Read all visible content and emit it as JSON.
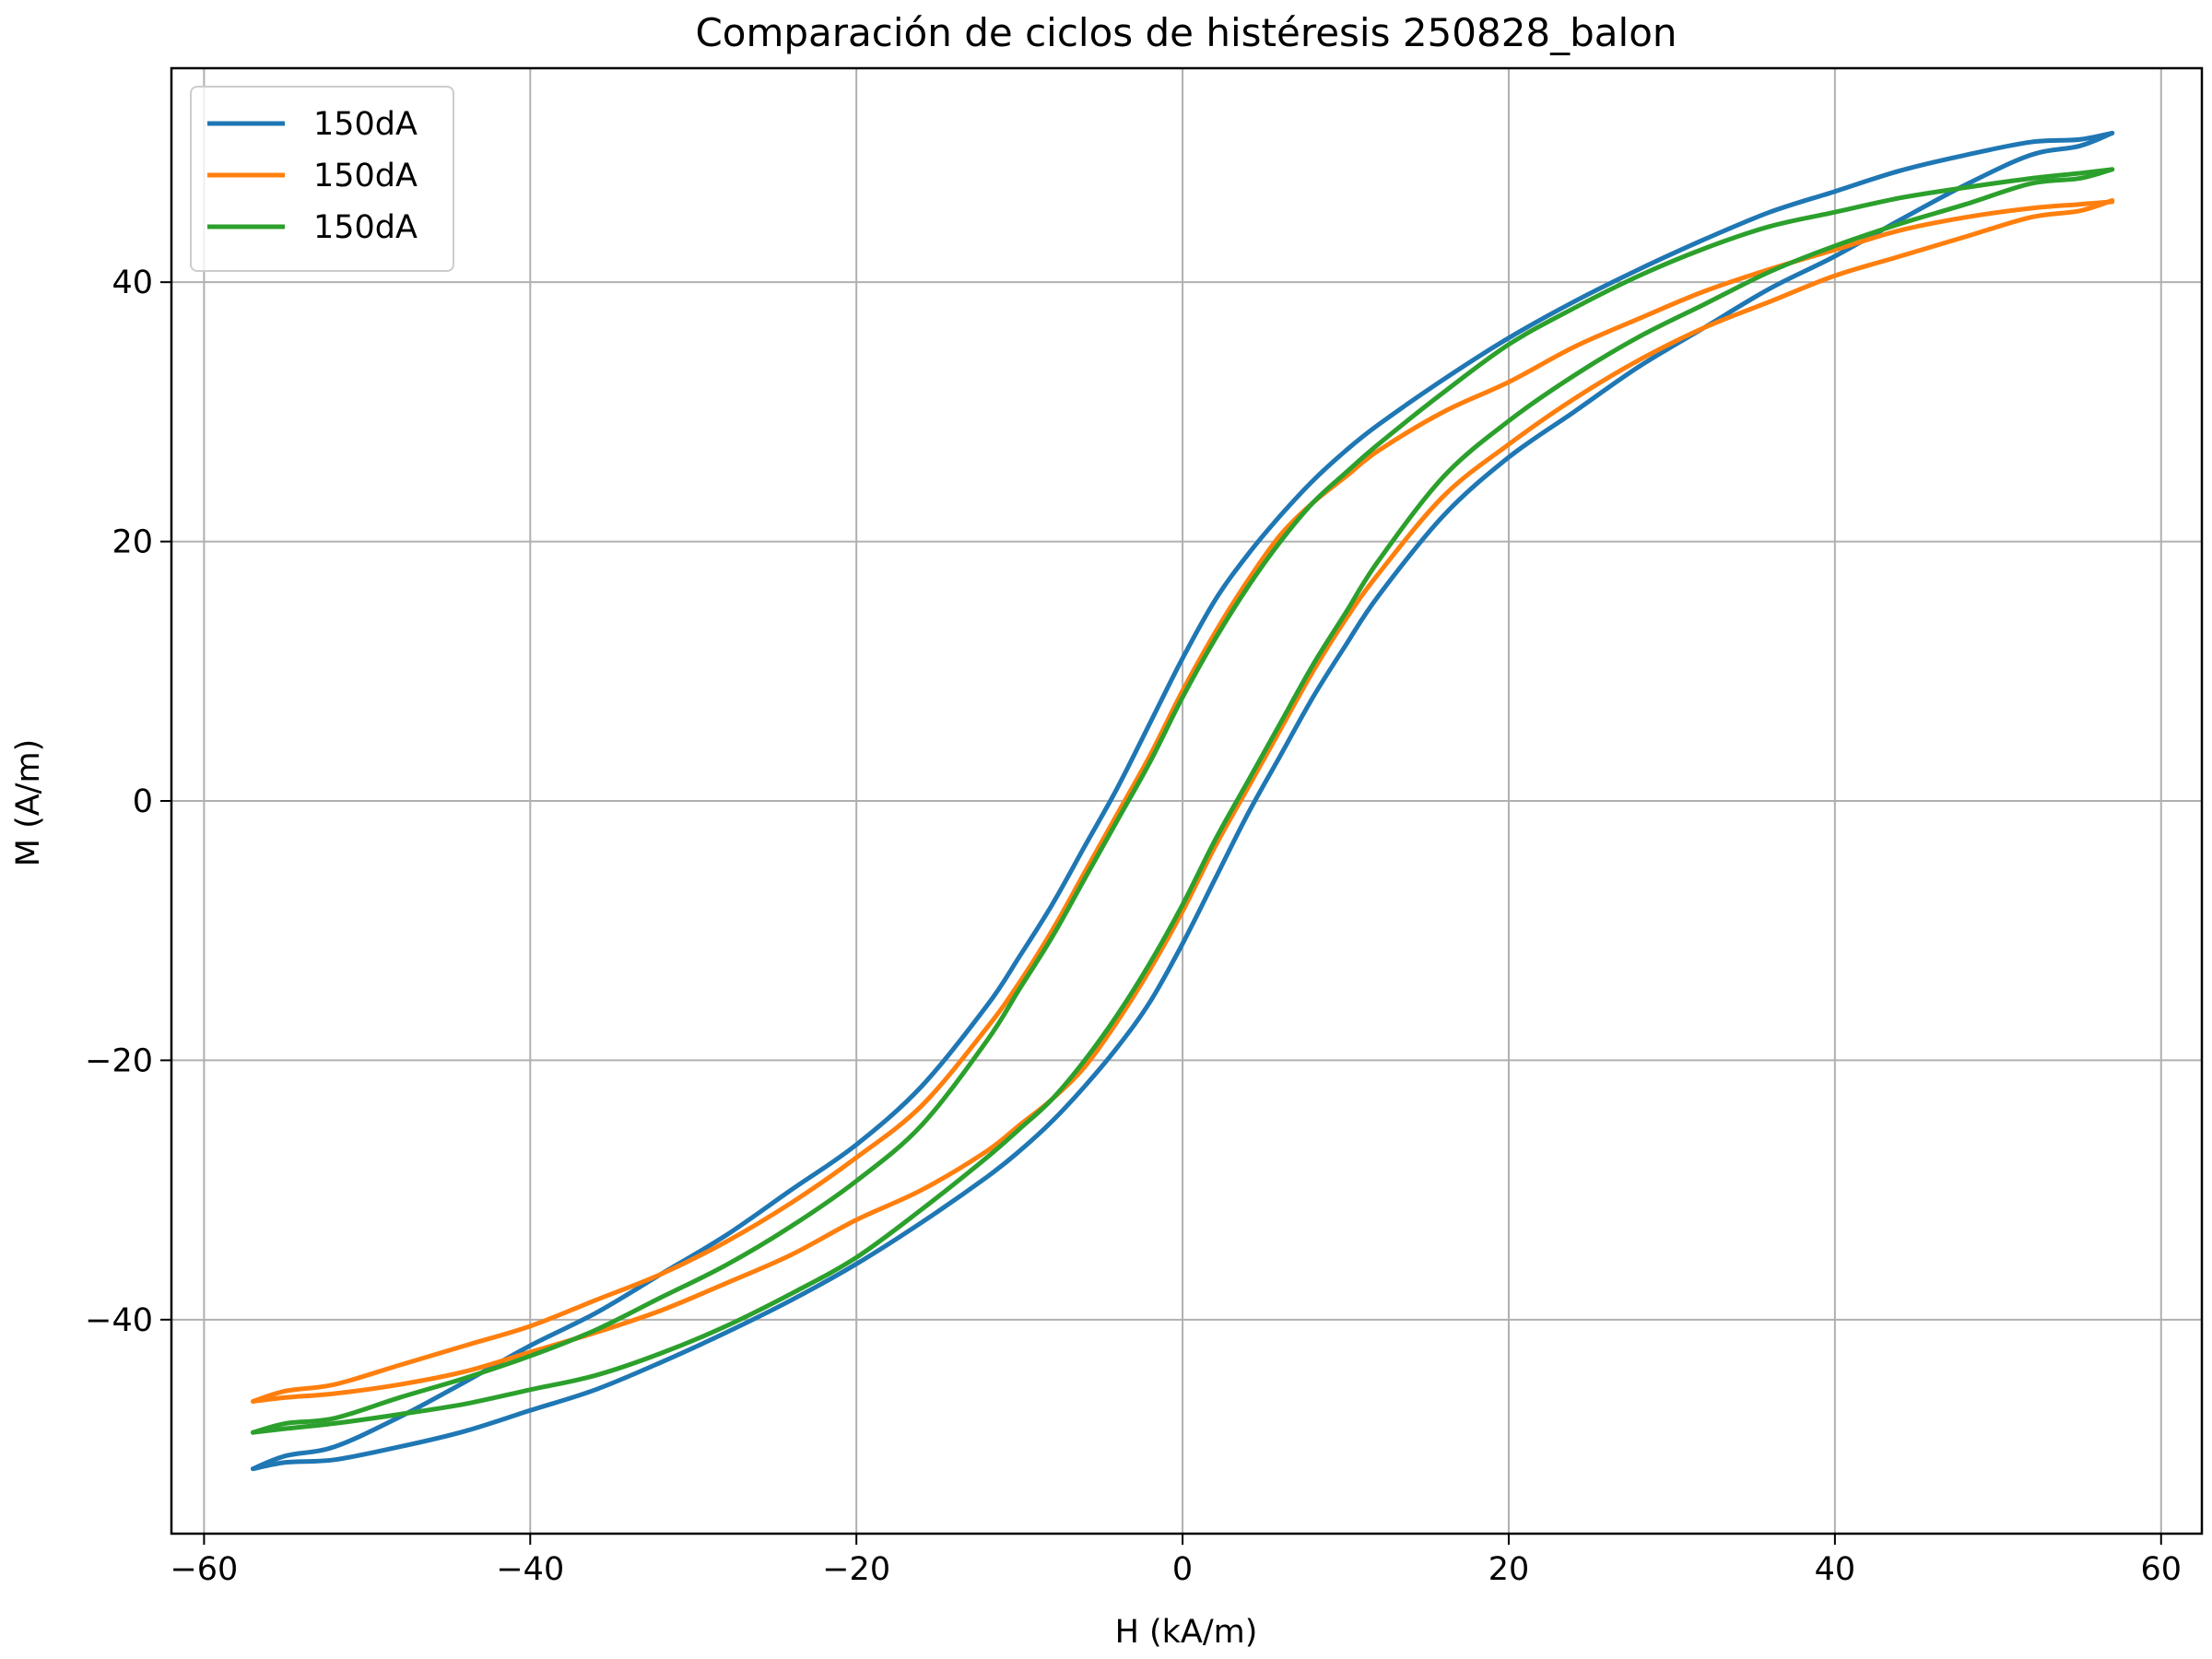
{
  "chart_data": {
    "type": "line",
    "title": "Comparación de ciclos de histéresis 250828_balon",
    "xlabel": "H (kA/m)",
    "ylabel": "M (A/m)",
    "xlim": [
      -62,
      62.5
    ],
    "ylim": [
      -56.5,
      56.5
    ],
    "xticks": [
      -60,
      -40,
      -20,
      0,
      20,
      40,
      60
    ],
    "yticks": [
      -40,
      -20,
      0,
      20,
      40
    ],
    "xtick_labels": [
      "−60",
      "−40",
      "−20",
      "0",
      "20",
      "40",
      "60"
    ],
    "ytick_labels": [
      "−40",
      "−20",
      "0",
      "20",
      "40"
    ],
    "grid": true,
    "legend_position": "upper-left",
    "series": [
      {
        "name": "150dA",
        "color": "#1f77b4",
        "upper_branch_H": [
          -57,
          -55,
          -52,
          -48,
          -44,
          -40,
          -36,
          -32,
          -28,
          -24,
          -20,
          -16,
          -12,
          -10,
          -8,
          -6,
          -4,
          -2,
          0,
          2,
          4,
          6,
          8,
          10,
          12,
          16,
          20,
          24,
          28,
          32,
          36,
          40,
          44,
          48,
          52,
          55,
          57
        ],
        "upper_branch_M": [
          -51.5,
          -50.5,
          -49.8,
          -47.5,
          -44.8,
          -42,
          -39.5,
          -36.5,
          -33.5,
          -30,
          -26.5,
          -22,
          -15.8,
          -12,
          -8,
          -3.5,
          1,
          6,
          11,
          15.5,
          19,
          22,
          24.7,
          27,
          29,
          32.5,
          35.7,
          38.5,
          41,
          43.3,
          45.4,
          47,
          48.6,
          49.8,
          50.8,
          51,
          51.5
        ],
        "lower_branch_H": [
          -57,
          -55,
          -52,
          -48,
          -44,
          -40,
          -36,
          -32,
          -28,
          -24,
          -20,
          -16,
          -12,
          -10,
          -8,
          -6,
          -4,
          -2,
          0,
          2,
          4,
          6,
          8,
          10,
          12,
          16,
          20,
          24,
          28,
          32,
          36,
          40,
          44,
          48,
          52,
          55,
          57
        ],
        "lower_branch_M": [
          -51.5,
          -51,
          -50.8,
          -49.8,
          -48.6,
          -47,
          -45.4,
          -43.3,
          -41,
          -38.5,
          -35.7,
          -32.5,
          -29,
          -27,
          -24.7,
          -22,
          -19,
          -15.5,
          -11,
          -6,
          -1,
          3.5,
          8,
          12,
          15.8,
          22,
          26.5,
          30,
          33.5,
          36.5,
          39.5,
          42,
          44.8,
          47.5,
          49.8,
          50.5,
          51.5
        ]
      },
      {
        "name": "150dA",
        "color": "#ff7f0e",
        "upper_branch_H": [
          -57,
          -55,
          -52,
          -48,
          -44,
          -40,
          -36,
          -32,
          -28,
          -24,
          -20,
          -16,
          -12,
          -10,
          -8,
          -6,
          -4,
          -2,
          0,
          2,
          4,
          6,
          8,
          10,
          12,
          16,
          20,
          24,
          28,
          32,
          36,
          40,
          44,
          48,
          52,
          55,
          57
        ],
        "upper_branch_M": [
          -46.3,
          -45.5,
          -45,
          -43.5,
          -42,
          -40.5,
          -38.5,
          -36.5,
          -34,
          -31,
          -27.5,
          -23.5,
          -17.5,
          -14,
          -10,
          -5.5,
          -1,
          3.5,
          8.5,
          13,
          17,
          20.5,
          23,
          25,
          27,
          30,
          32.3,
          35,
          37.2,
          39.3,
          41,
          42.5,
          44,
          45,
          45.7,
          46,
          46.2
        ],
        "lower_branch_H": [
          -57,
          -55,
          -52,
          -48,
          -44,
          -40,
          -36,
          -32,
          -28,
          -24,
          -20,
          -16,
          -12,
          -10,
          -8,
          -6,
          -4,
          -2,
          0,
          2,
          4,
          6,
          8,
          10,
          12,
          16,
          20,
          24,
          28,
          32,
          36,
          40,
          44,
          48,
          52,
          55,
          57
        ],
        "lower_branch_M": [
          -46.3,
          -46,
          -45.7,
          -45,
          -44,
          -42.5,
          -41,
          -39.3,
          -37.2,
          -35,
          -32.3,
          -30,
          -27,
          -25,
          -23,
          -20.5,
          -17,
          -13,
          -8.5,
          -3.5,
          1,
          5.5,
          10,
          14,
          17.5,
          23.5,
          27.5,
          31,
          34,
          36.5,
          38.5,
          40.5,
          42,
          43.5,
          45,
          45.5,
          46.3
        ]
      },
      {
        "name": "150dA",
        "color": "#2ca02c",
        "upper_branch_H": [
          -57,
          -55,
          -52,
          -48,
          -44,
          -40,
          -36,
          -32,
          -28,
          -24,
          -20,
          -16,
          -12,
          -10,
          -8,
          -6,
          -4,
          -2,
          0,
          2,
          4,
          6,
          8,
          10,
          12,
          16,
          20,
          24,
          28,
          32,
          36,
          40,
          44,
          48,
          52,
          55,
          57
        ],
        "upper_branch_M": [
          -48.7,
          -48,
          -47.6,
          -46,
          -44.5,
          -42.8,
          -40.8,
          -38.3,
          -35.8,
          -32.8,
          -29.3,
          -25,
          -18.5,
          -14.5,
          -10.5,
          -6,
          -1.5,
          3,
          8,
          12.5,
          16.5,
          20,
          23,
          25.3,
          27.5,
          31.5,
          35.2,
          38,
          40.5,
          42.6,
          44.3,
          45.4,
          46.5,
          47.3,
          48,
          48.4,
          48.7
        ],
        "lower_branch_H": [
          -57,
          -55,
          -52,
          -48,
          -44,
          -40,
          -36,
          -32,
          -28,
          -24,
          -20,
          -16,
          -12,
          -10,
          -8,
          -6,
          -4,
          -2,
          0,
          2,
          4,
          6,
          8,
          10,
          12,
          16,
          20,
          24,
          28,
          32,
          36,
          40,
          44,
          48,
          52,
          55,
          57
        ],
        "lower_branch_M": [
          -48.7,
          -48.4,
          -48,
          -47.3,
          -46.5,
          -45.4,
          -44.3,
          -42.6,
          -40.5,
          -38,
          -35.2,
          -31.5,
          -27.5,
          -25.3,
          -23,
          -20,
          -16.5,
          -12.5,
          -8,
          -3,
          1.5,
          6,
          10.5,
          14.5,
          18.5,
          25,
          29.3,
          32.8,
          35.8,
          38.3,
          40.8,
          42.8,
          44.5,
          46,
          47.6,
          48,
          48.7
        ]
      }
    ]
  }
}
